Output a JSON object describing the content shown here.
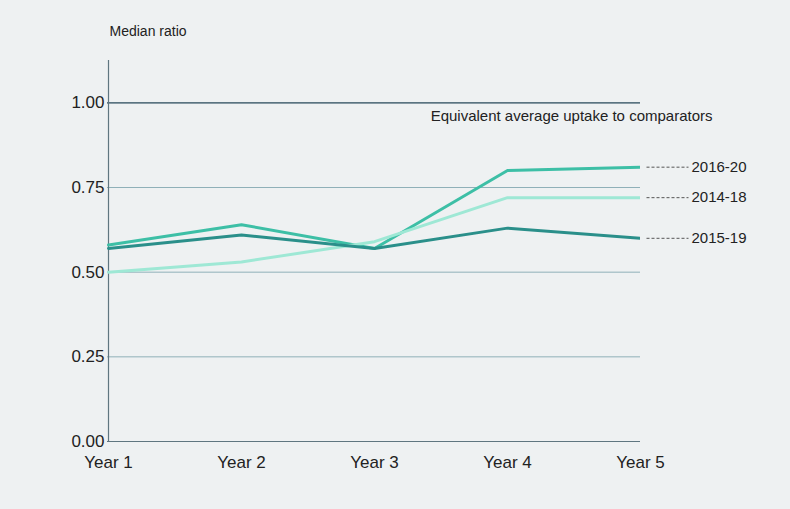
{
  "chart_data": {
    "type": "line",
    "y_label": "Median ratio",
    "categories": [
      "Year 1",
      "Year 2",
      "Year 3",
      "Year 4",
      "Year 5"
    ],
    "series": [
      {
        "name": "2016-20",
        "color": "#3dbfa6",
        "values": [
          0.58,
          0.64,
          0.57,
          0.8,
          0.81
        ]
      },
      {
        "name": "2014-18",
        "color": "#9ee8d5",
        "values": [
          0.5,
          0.53,
          0.59,
          0.72,
          0.72
        ]
      },
      {
        "name": "2015-19",
        "color": "#2a8f8a",
        "values": [
          0.57,
          0.61,
          0.57,
          0.63,
          0.6
        ]
      }
    ],
    "ylim": [
      0,
      1.125
    ],
    "yticks": [
      {
        "value": 0,
        "label": "0.00"
      },
      0.25,
      {
        "value": 0.5,
        "label": "0.50"
      },
      0.75,
      {
        "value": 1,
        "label": "1.00"
      }
    ],
    "grid": true,
    "legend": "right",
    "annotations": [
      {
        "text": "Equivalent average uptake to comparators",
        "y": 1
      }
    ]
  }
}
